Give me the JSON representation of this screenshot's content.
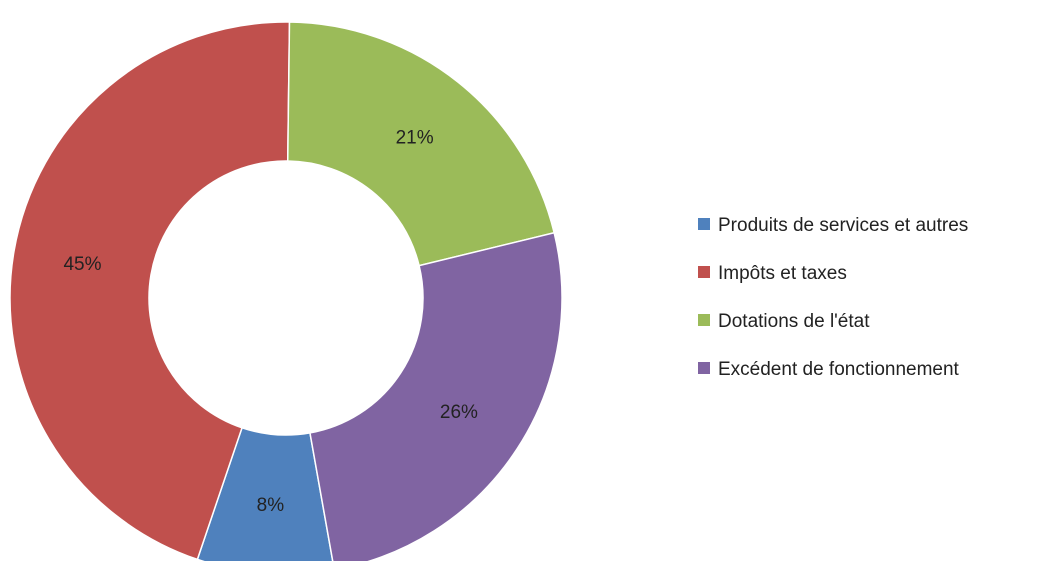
{
  "chart_data": {
    "type": "pie",
    "variant": "donut",
    "slices": [
      {
        "label": "Produits de services et autres",
        "value": 8,
        "display": "8%",
        "color": "#4f81bd"
      },
      {
        "label": "Impôts et taxes",
        "value": 45,
        "display": "45%",
        "color": "#c0504d"
      },
      {
        "label": "Dotations de l'état",
        "value": 21,
        "display": "21%",
        "color": "#9bbb59"
      },
      {
        "label": "Excédent de fonctionnement",
        "value": 26,
        "display": "26%",
        "color": "#8064a2"
      }
    ],
    "legend_position": "right"
  }
}
